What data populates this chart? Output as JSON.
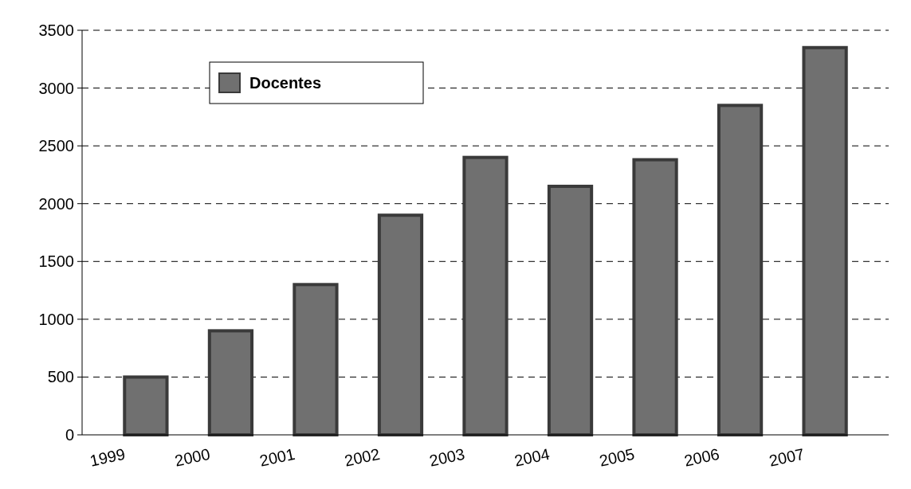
{
  "chart_data": {
    "type": "bar",
    "categories": [
      "1999",
      "2000",
      "2001",
      "2002",
      "2003",
      "2004",
      "2005",
      "2006",
      "2007"
    ],
    "series": [
      {
        "name": "Docentes",
        "color": "#707070",
        "values": [
          500,
          900,
          1300,
          1900,
          2400,
          2150,
          2380,
          2850,
          3350
        ]
      }
    ],
    "ylim": [
      0,
      3500
    ],
    "yticks": [
      0,
      500,
      1000,
      1500,
      2000,
      2500,
      3000,
      3500
    ],
    "grid": "y",
    "legend": "top left"
  }
}
